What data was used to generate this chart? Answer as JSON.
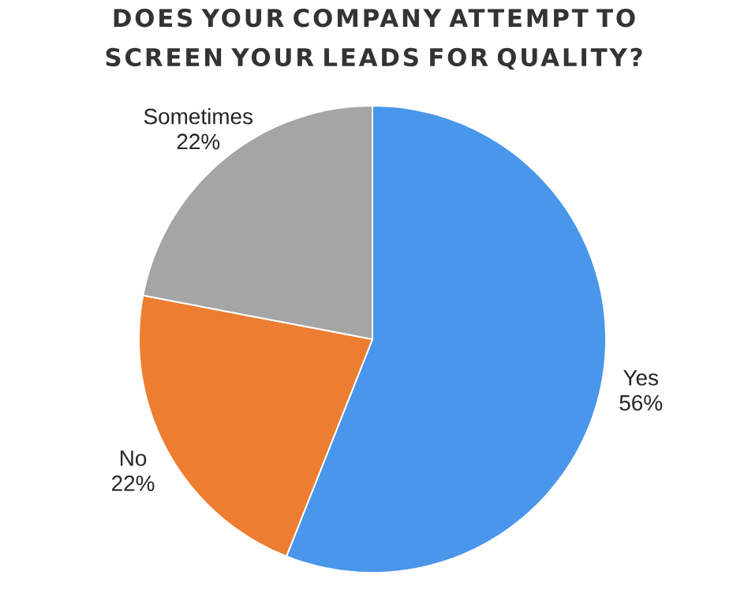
{
  "chart_data": {
    "type": "pie",
    "title": "DOES YOUR COMPANY ATTEMPT TO SCREEN YOUR LEADS FOR QUALITY?",
    "categories": [
      "Yes",
      "No",
      "Sometimes"
    ],
    "values": [
      56,
      22,
      22
    ],
    "colors": [
      "#4a96ea",
      "#ed7d31",
      "#a5a5a5"
    ],
    "value_labels": [
      "56%",
      "22%",
      "22%"
    ]
  }
}
